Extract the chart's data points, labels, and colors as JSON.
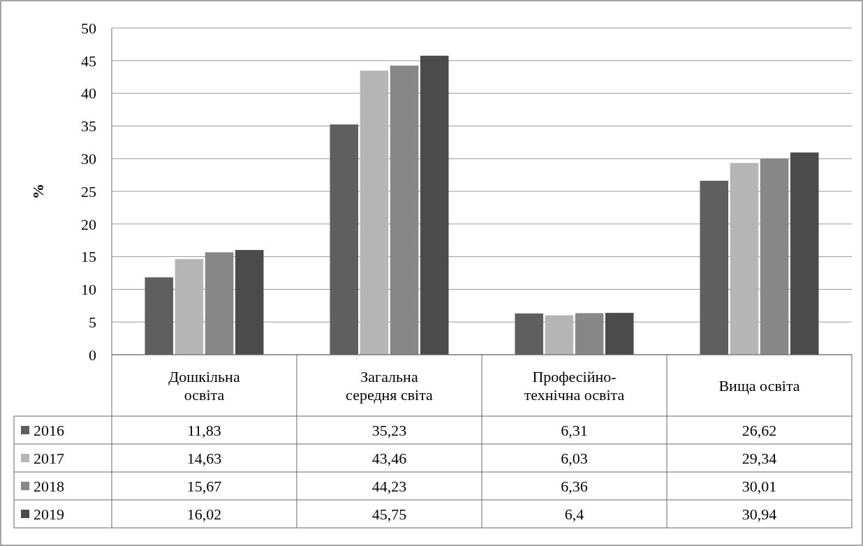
{
  "chart_data": {
    "type": "bar",
    "ylabel": "%",
    "categories": [
      "Дошкільна освіта",
      "Загальна середня світа",
      "Професійно-технічна освіта",
      "Вища освіта"
    ],
    "series": [
      {
        "name": "2016",
        "color": "#5f5f5f",
        "values": [
          11.83,
          35.23,
          6.31,
          26.62
        ],
        "value_labels": [
          "11,83",
          "35,23",
          "6,31",
          "26,62"
        ]
      },
      {
        "name": "2017",
        "color": "#b5b5b5",
        "values": [
          14.63,
          43.46,
          6.03,
          29.34
        ],
        "value_labels": [
          "14,63",
          "43,46",
          "6,03",
          "29,34"
        ]
      },
      {
        "name": "2018",
        "color": "#878787",
        "values": [
          15.67,
          44.23,
          6.36,
          30.01
        ],
        "value_labels": [
          "15,67",
          "44,23",
          "6,36",
          "30,01"
        ]
      },
      {
        "name": "2019",
        "color": "#4b4b4b",
        "values": [
          16.02,
          45.75,
          6.4,
          30.94
        ],
        "value_labels": [
          "16,02",
          "45,75",
          "6,4",
          "30,94"
        ]
      }
    ],
    "ylim": [
      0,
      50
    ],
    "yticks": [
      0,
      5,
      10,
      15,
      20,
      25,
      30,
      35,
      40,
      45,
      50
    ],
    "grid": "y",
    "legend": "bottom"
  }
}
